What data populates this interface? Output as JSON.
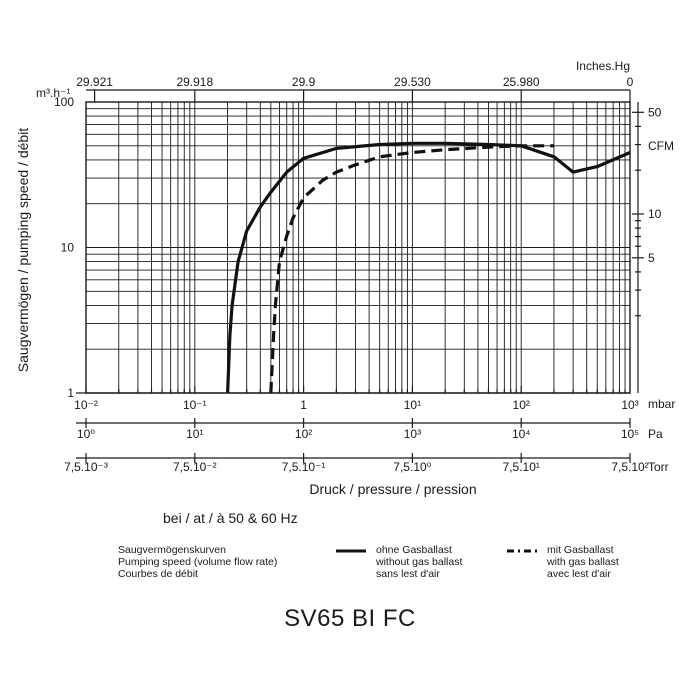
{
  "chart_data": {
    "type": "line",
    "scale": {
      "x": "log",
      "y": "log"
    },
    "top_axis": {
      "unit": "Inches.Hg",
      "ticks": [
        "29.921",
        "29.918",
        "29.9",
        "29.530",
        "25.980",
        "0"
      ]
    },
    "left_axis": {
      "unit": "m³.h⁻¹",
      "ticks": [
        "100",
        "10",
        "1"
      ],
      "label": "Saugvermögen / pumping speed / débit"
    },
    "right_axis": {
      "unit": "CFM",
      "ticks": [
        "50",
        "10",
        "5"
      ]
    },
    "x_axes": [
      {
        "unit": "mbar",
        "ticks": [
          "10⁻²",
          "10⁻¹",
          "1",
          "10¹",
          "10²",
          "10³"
        ]
      },
      {
        "unit": "Pa",
        "ticks": [
          "10⁰",
          "10¹",
          "10²",
          "10³",
          "10⁴",
          "10⁵"
        ]
      },
      {
        "unit": "Torr",
        "ticks": [
          "7,5.10⁻³",
          "7,5.10⁻²",
          "7,5.10⁻¹",
          "7,5.10⁰",
          "7,5.10¹",
          "7,5.10²"
        ]
      }
    ],
    "xlabel": "Druck / pressure / pression",
    "note": "bei / at / à 50 & 60 Hz",
    "xlim": [
      0.01,
      1000
    ],
    "ylim": [
      1,
      100
    ],
    "series": [
      {
        "name": "ohne Gasballast / without gas ballast / sans lest d'air",
        "style": "solid",
        "x": [
          0.2,
          0.21,
          0.22,
          0.25,
          0.3,
          0.4,
          0.5,
          0.7,
          1,
          2,
          5,
          10,
          20,
          50,
          100,
          200,
          300,
          500,
          1000
        ],
        "y": [
          1,
          2.5,
          4,
          8,
          13,
          19,
          24,
          33,
          41,
          48,
          51,
          52,
          52,
          51,
          50,
          42,
          33,
          36,
          45
        ]
      },
      {
        "name": "mit Gasballast / with gas ballast / avec lest d'air",
        "style": "dashed",
        "x": [
          0.5,
          0.53,
          0.55,
          0.6,
          0.7,
          0.8,
          1,
          1.5,
          2,
          3,
          5,
          10,
          20,
          50,
          100,
          200
        ],
        "y": [
          1,
          2.5,
          4,
          8,
          12,
          16,
          22,
          29,
          33,
          37,
          42,
          45,
          47,
          49,
          50,
          50
        ]
      }
    ]
  },
  "legend": {
    "curves_title": [
      "Saugvermögenskurven",
      "Pumping speed (volume flow rate)",
      "Courbes de débit"
    ],
    "solid": [
      "ohne Gasballast",
      "without gas ballast",
      "sans lest d'air"
    ],
    "dashed": [
      "mit Gasballast",
      "with gas ballast",
      "avec lest d'air"
    ]
  },
  "model": "SV65 BI FC"
}
